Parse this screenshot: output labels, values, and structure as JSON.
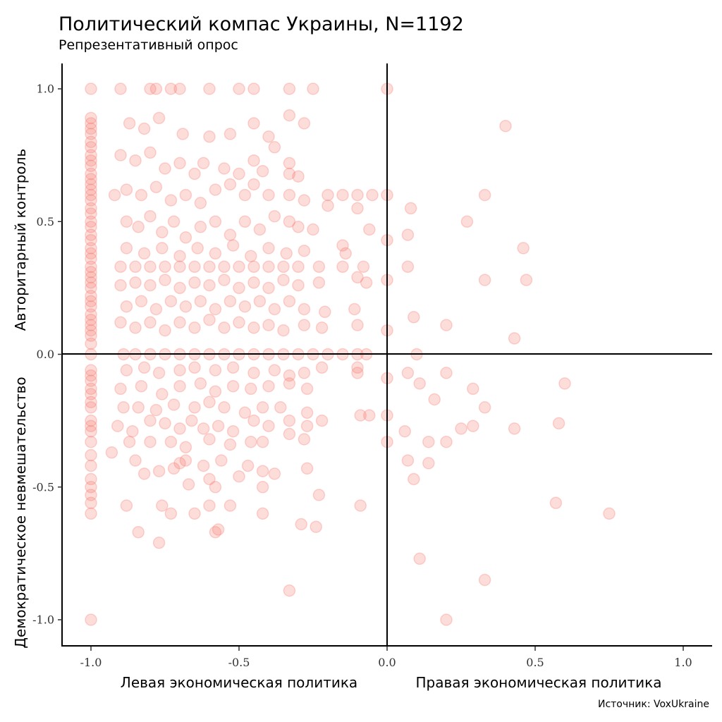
{
  "title": "Политический компас Украины, N=1192",
  "subtitle": "Репрезентативный опрос",
  "caption": "Источник: VoxUkraine",
  "point_color": "#F8766D",
  "chart_data": {
    "type": "scatter",
    "title": "Политический компас Украины, N=1192",
    "subtitle": "Репрезентативный опрос",
    "x_labels": {
      "left": "Левая экономическая политика",
      "right": "Правая экономическая политика"
    },
    "y_labels": {
      "top": "Авторитарный контроль",
      "bottom": "Демократическое невмешательство"
    },
    "xlim": [
      -1.1,
      1.1
    ],
    "ylim": [
      -1.1,
      1.1
    ],
    "x_ticks": [
      -1.0,
      -0.5,
      0.0,
      0.5,
      1.0
    ],
    "x_tick_labels": [
      "-1.0",
      "-0.5",
      "0.0",
      "0.5",
      "1.0"
    ],
    "y_ticks": [
      -1.0,
      -0.5,
      0.0,
      0.5,
      1.0
    ],
    "y_tick_labels": [
      "-1.0",
      "-0.5",
      "0.0",
      "0.5",
      "1.0"
    ],
    "reference_lines": {
      "x": 0,
      "y": 0
    },
    "grid": false,
    "legend": "none",
    "marker_alpha": 0.25,
    "points": [
      [
        -1,
        1
      ],
      [
        -1,
        0.89
      ],
      [
        -1,
        0.87
      ],
      [
        -1,
        0.85
      ],
      [
        -1,
        0.83
      ],
      [
        -1,
        0.8
      ],
      [
        -1,
        0.78
      ],
      [
        -1,
        0.75
      ],
      [
        -1,
        0.73
      ],
      [
        -1,
        0.71
      ],
      [
        -1,
        0.68
      ],
      [
        -1,
        0.66
      ],
      [
        -1,
        0.64
      ],
      [
        -1,
        0.62
      ],
      [
        -1,
        0.6
      ],
      [
        -1,
        0.58
      ],
      [
        -1,
        0.55
      ],
      [
        -1,
        0.53
      ],
      [
        -1,
        0.5
      ],
      [
        -1,
        0.48
      ],
      [
        -1,
        0.45
      ],
      [
        -1,
        0.43
      ],
      [
        -1,
        0.4
      ],
      [
        -1,
        0.38
      ],
      [
        -1,
        0.36
      ],
      [
        -1,
        0.33
      ],
      [
        -1,
        0.31
      ],
      [
        -1,
        0.29
      ],
      [
        -1,
        0.27
      ],
      [
        -1,
        0.25
      ],
      [
        -1,
        0.22
      ],
      [
        -1,
        0.2
      ],
      [
        -1,
        0.18
      ],
      [
        -1,
        0.15
      ],
      [
        -1,
        0.13
      ],
      [
        -1,
        0.11
      ],
      [
        -1,
        0.09
      ],
      [
        -1,
        0.07
      ],
      [
        -1,
        0.04
      ],
      [
        -1,
        0
      ],
      [
        -1,
        -0.06
      ],
      [
        -1,
        -0.08
      ],
      [
        -1,
        -0.1
      ],
      [
        -1,
        -0.13
      ],
      [
        -1,
        -0.15
      ],
      [
        -1,
        -0.18
      ],
      [
        -1,
        -0.2
      ],
      [
        -1,
        -0.25
      ],
      [
        -1,
        -0.27
      ],
      [
        -1,
        -0.29
      ],
      [
        -1,
        -0.33
      ],
      [
        -1,
        -0.38
      ],
      [
        -1,
        -0.42
      ],
      [
        -1,
        -0.47
      ],
      [
        -1,
        -0.5
      ],
      [
        -1,
        -0.53
      ],
      [
        -1,
        -0.56
      ],
      [
        -1,
        -0.6
      ],
      [
        -1,
        -1
      ],
      [
        -0.9,
        1
      ],
      [
        -0.8,
        1
      ],
      [
        -0.78,
        1
      ],
      [
        -0.73,
        1
      ],
      [
        -0.7,
        1
      ],
      [
        -0.6,
        1
      ],
      [
        -0.5,
        1
      ],
      [
        -0.45,
        1
      ],
      [
        -0.33,
        1
      ],
      [
        -0.25,
        1
      ],
      [
        0,
        1
      ],
      [
        -0.87,
        0.87
      ],
      [
        -0.82,
        0.85
      ],
      [
        -0.77,
        0.89
      ],
      [
        -0.69,
        0.83
      ],
      [
        -0.6,
        0.82
      ],
      [
        -0.53,
        0.83
      ],
      [
        -0.45,
        0.87
      ],
      [
        -0.4,
        0.82
      ],
      [
        -0.33,
        0.9
      ],
      [
        -0.28,
        0.87
      ],
      [
        0.4,
        0.86
      ],
      [
        -0.9,
        0.75
      ],
      [
        -0.85,
        0.73
      ],
      [
        -0.8,
        0.76
      ],
      [
        -0.75,
        0.7
      ],
      [
        -0.7,
        0.72
      ],
      [
        -0.65,
        0.68
      ],
      [
        -0.62,
        0.72
      ],
      [
        -0.55,
        0.7
      ],
      [
        -0.5,
        0.68
      ],
      [
        -0.45,
        0.73
      ],
      [
        -0.42,
        0.69
      ],
      [
        -0.38,
        0.78
      ],
      [
        -0.33,
        0.72
      ],
      [
        -0.33,
        0.68
      ],
      [
        -0.3,
        0.67
      ],
      [
        -0.92,
        0.6
      ],
      [
        -0.88,
        0.62
      ],
      [
        -0.83,
        0.6
      ],
      [
        -0.78,
        0.63
      ],
      [
        -0.73,
        0.58
      ],
      [
        -0.68,
        0.6
      ],
      [
        -0.63,
        0.57
      ],
      [
        -0.58,
        0.62
      ],
      [
        -0.53,
        0.64
      ],
      [
        -0.48,
        0.6
      ],
      [
        -0.45,
        0.64
      ],
      [
        -0.4,
        0.6
      ],
      [
        -0.33,
        0.6
      ],
      [
        -0.28,
        0.58
      ],
      [
        -0.2,
        0.6
      ],
      [
        -0.15,
        0.6
      ],
      [
        -0.1,
        0.6
      ],
      [
        -0.05,
        0.6
      ],
      [
        0,
        0.6
      ],
      [
        0.33,
        0.6
      ],
      [
        -0.88,
        0.5
      ],
      [
        -0.84,
        0.48
      ],
      [
        -0.8,
        0.52
      ],
      [
        -0.76,
        0.46
      ],
      [
        -0.72,
        0.5
      ],
      [
        -0.68,
        0.44
      ],
      [
        -0.63,
        0.48
      ],
      [
        -0.58,
        0.5
      ],
      [
        -0.53,
        0.45
      ],
      [
        -0.48,
        0.5
      ],
      [
        -0.43,
        0.47
      ],
      [
        -0.38,
        0.52
      ],
      [
        -0.33,
        0.5
      ],
      [
        -0.3,
        0.48
      ],
      [
        -0.25,
        0.47
      ],
      [
        -0.2,
        0.56
      ],
      [
        -0.1,
        0.55
      ],
      [
        -0.06,
        0.47
      ],
      [
        0,
        0.43
      ],
      [
        0.08,
        0.55
      ],
      [
        0.07,
        0.45
      ],
      [
        0.27,
        0.5
      ],
      [
        0.46,
        0.4
      ],
      [
        -0.9,
        0.33
      ],
      [
        -0.85,
        0.33
      ],
      [
        -0.8,
        0.33
      ],
      [
        -0.75,
        0.33
      ],
      [
        -0.7,
        0.33
      ],
      [
        -0.65,
        0.33
      ],
      [
        -0.6,
        0.33
      ],
      [
        -0.55,
        0.33
      ],
      [
        -0.5,
        0.33
      ],
      [
        -0.45,
        0.33
      ],
      [
        -0.4,
        0.33
      ],
      [
        -0.35,
        0.33
      ],
      [
        -0.3,
        0.33
      ],
      [
        -0.23,
        0.33
      ],
      [
        -0.15,
        0.33
      ],
      [
        -0.08,
        0.33
      ],
      [
        0.07,
        0.33
      ],
      [
        -0.88,
        0.4
      ],
      [
        -0.82,
        0.38
      ],
      [
        -0.76,
        0.4
      ],
      [
        -0.7,
        0.37
      ],
      [
        -0.64,
        0.4
      ],
      [
        -0.58,
        0.38
      ],
      [
        -0.52,
        0.41
      ],
      [
        -0.46,
        0.37
      ],
      [
        -0.4,
        0.4
      ],
      [
        -0.34,
        0.38
      ],
      [
        -0.28,
        0.39
      ],
      [
        -0.14,
        0.38
      ],
      [
        -0.15,
        0.41
      ],
      [
        -0.9,
        0.26
      ],
      [
        -0.85,
        0.27
      ],
      [
        -0.8,
        0.26
      ],
      [
        -0.75,
        0.28
      ],
      [
        -0.7,
        0.25
      ],
      [
        -0.65,
        0.27
      ],
      [
        -0.6,
        0.26
      ],
      [
        -0.55,
        0.28
      ],
      [
        -0.5,
        0.25
      ],
      [
        -0.45,
        0.27
      ],
      [
        -0.4,
        0.25
      ],
      [
        -0.35,
        0.28
      ],
      [
        -0.3,
        0.26
      ],
      [
        -0.23,
        0.27
      ],
      [
        -0.1,
        0.29
      ],
      [
        -0.07,
        0.27
      ],
      [
        0,
        0.28
      ],
      [
        0.33,
        0.28
      ],
      [
        0.47,
        0.28
      ],
      [
        -0.88,
        0.18
      ],
      [
        -0.83,
        0.2
      ],
      [
        -0.78,
        0.17
      ],
      [
        -0.73,
        0.2
      ],
      [
        -0.68,
        0.18
      ],
      [
        -0.63,
        0.2
      ],
      [
        -0.58,
        0.17
      ],
      [
        -0.53,
        0.2
      ],
      [
        -0.48,
        0.18
      ],
      [
        -0.43,
        0.2
      ],
      [
        -0.38,
        0.17
      ],
      [
        -0.33,
        0.2
      ],
      [
        -0.28,
        0.17
      ],
      [
        -0.21,
        0.16
      ],
      [
        -0.11,
        0.17
      ],
      [
        0.09,
        0.14
      ],
      [
        -0.9,
        0.12
      ],
      [
        -0.85,
        0.1
      ],
      [
        -0.8,
        0.12
      ],
      [
        -0.75,
        0.09
      ],
      [
        -0.7,
        0.12
      ],
      [
        -0.65,
        0.1
      ],
      [
        -0.6,
        0.13
      ],
      [
        -0.55,
        0.1
      ],
      [
        -0.5,
        0.12
      ],
      [
        -0.45,
        0.1
      ],
      [
        -0.4,
        0.11
      ],
      [
        -0.35,
        0.09
      ],
      [
        -0.28,
        0.11
      ],
      [
        -0.22,
        0.1
      ],
      [
        -0.1,
        0.11
      ],
      [
        0,
        0.09
      ],
      [
        0.2,
        0.11
      ],
      [
        0.43,
        0.06
      ],
      [
        -0.89,
        0
      ],
      [
        -0.85,
        0
      ],
      [
        -0.8,
        0
      ],
      [
        -0.75,
        0
      ],
      [
        -0.7,
        0
      ],
      [
        -0.65,
        0
      ],
      [
        -0.6,
        0
      ],
      [
        -0.55,
        0
      ],
      [
        -0.5,
        0
      ],
      [
        -0.45,
        0
      ],
      [
        -0.4,
        0
      ],
      [
        -0.35,
        0
      ],
      [
        -0.3,
        0
      ],
      [
        -0.25,
        0
      ],
      [
        -0.2,
        0
      ],
      [
        -0.15,
        0
      ],
      [
        -0.1,
        0
      ],
      [
        -0.07,
        0
      ],
      [
        0.1,
        0
      ],
      [
        -0.88,
        -0.06
      ],
      [
        -0.82,
        -0.05
      ],
      [
        -0.77,
        -0.07
      ],
      [
        -0.7,
        -0.06
      ],
      [
        -0.65,
        -0.05
      ],
      [
        -0.58,
        -0.06
      ],
      [
        -0.52,
        -0.05
      ],
      [
        -0.45,
        -0.07
      ],
      [
        -0.38,
        -0.06
      ],
      [
        -0.33,
        -0.08
      ],
      [
        -0.28,
        -0.07
      ],
      [
        -0.22,
        -0.05
      ],
      [
        -0.1,
        -0.05
      ],
      [
        -0.1,
        -0.07
      ],
      [
        0,
        -0.09
      ],
      [
        0.07,
        -0.07
      ],
      [
        0.2,
        -0.07
      ],
      [
        -0.9,
        -0.13
      ],
      [
        -0.83,
        -0.12
      ],
      [
        -0.76,
        -0.15
      ],
      [
        -0.7,
        -0.12
      ],
      [
        -0.63,
        -0.11
      ],
      [
        -0.58,
        -0.14
      ],
      [
        -0.52,
        -0.12
      ],
      [
        -0.46,
        -0.13
      ],
      [
        -0.4,
        -0.12
      ],
      [
        -0.33,
        -0.11
      ],
      [
        -0.27,
        -0.13
      ],
      [
        0.11,
        -0.11
      ],
      [
        0.29,
        -0.13
      ],
      [
        0.6,
        -0.11
      ],
      [
        -0.89,
        -0.2
      ],
      [
        -0.84,
        -0.2
      ],
      [
        -0.78,
        -0.21
      ],
      [
        -0.72,
        -0.19
      ],
      [
        -0.65,
        -0.2
      ],
      [
        -0.6,
        -0.18
      ],
      [
        -0.55,
        -0.2
      ],
      [
        -0.48,
        -0.22
      ],
      [
        -0.42,
        -0.2
      ],
      [
        -0.36,
        -0.2
      ],
      [
        -0.27,
        -0.22
      ],
      [
        -0.09,
        -0.23
      ],
      [
        -0.06,
        -0.23
      ],
      [
        0,
        -0.23
      ],
      [
        0.16,
        -0.17
      ],
      [
        0.33,
        -0.2
      ],
      [
        -0.91,
        -0.27
      ],
      [
        -0.86,
        -0.29
      ],
      [
        -0.8,
        -0.25
      ],
      [
        -0.75,
        -0.26
      ],
      [
        -0.7,
        -0.28
      ],
      [
        -0.66,
        -0.25
      ],
      [
        -0.62,
        -0.28
      ],
      [
        -0.57,
        -0.27
      ],
      [
        -0.52,
        -0.29
      ],
      [
        -0.45,
        -0.25
      ],
      [
        -0.4,
        -0.27
      ],
      [
        -0.33,
        -0.25
      ],
      [
        -0.27,
        -0.27
      ],
      [
        -0.22,
        -0.25
      ],
      [
        0.06,
        -0.29
      ],
      [
        0.25,
        -0.28
      ],
      [
        0.29,
        -0.27
      ],
      [
        0.43,
        -0.28
      ],
      [
        0.58,
        -0.26
      ],
      [
        -0.87,
        -0.33
      ],
      [
        -0.8,
        -0.33
      ],
      [
        -0.73,
        -0.33
      ],
      [
        -0.68,
        -0.35
      ],
      [
        -0.6,
        -0.32
      ],
      [
        -0.53,
        -0.34
      ],
      [
        -0.46,
        -0.33
      ],
      [
        -0.42,
        -0.33
      ],
      [
        -0.33,
        -0.3
      ],
      [
        -0.28,
        -0.32
      ],
      [
        0,
        -0.33
      ],
      [
        0.14,
        -0.33
      ],
      [
        0.2,
        -0.33
      ],
      [
        -0.93,
        -0.37
      ],
      [
        -0.85,
        -0.4
      ],
      [
        -0.77,
        -0.44
      ],
      [
        -0.7,
        -0.41
      ],
      [
        -0.68,
        -0.4
      ],
      [
        -0.62,
        -0.42
      ],
      [
        -0.56,
        -0.4
      ],
      [
        -0.47,
        -0.42
      ],
      [
        -0.42,
        -0.44
      ],
      [
        -0.38,
        -0.45
      ],
      [
        -0.27,
        -0.43
      ],
      [
        0.07,
        -0.4
      ],
      [
        0.14,
        -0.41
      ],
      [
        0.09,
        -0.47
      ],
      [
        -0.82,
        -0.45
      ],
      [
        -0.72,
        -0.43
      ],
      [
        -0.67,
        -0.49
      ],
      [
        -0.6,
        -0.47
      ],
      [
        -0.58,
        -0.5
      ],
      [
        -0.5,
        -0.46
      ],
      [
        -0.42,
        -0.5
      ],
      [
        -0.23,
        -0.53
      ],
      [
        -0.88,
        -0.57
      ],
      [
        -0.76,
        -0.57
      ],
      [
        -0.73,
        -0.6
      ],
      [
        -0.65,
        -0.6
      ],
      [
        -0.6,
        -0.57
      ],
      [
        -0.53,
        -0.57
      ],
      [
        -0.42,
        -0.6
      ],
      [
        -0.09,
        -0.57
      ],
      [
        0.57,
        -0.56
      ],
      [
        0.75,
        -0.6
      ],
      [
        -0.84,
        -0.67
      ],
      [
        -0.77,
        -0.71
      ],
      [
        -0.58,
        -0.67
      ],
      [
        -0.57,
        -0.66
      ],
      [
        -0.29,
        -0.64
      ],
      [
        -0.24,
        -0.65
      ],
      [
        0.11,
        -0.77
      ],
      [
        0.33,
        -0.85
      ],
      [
        -0.33,
        -0.89
      ],
      [
        0.2,
        -1
      ]
    ]
  }
}
